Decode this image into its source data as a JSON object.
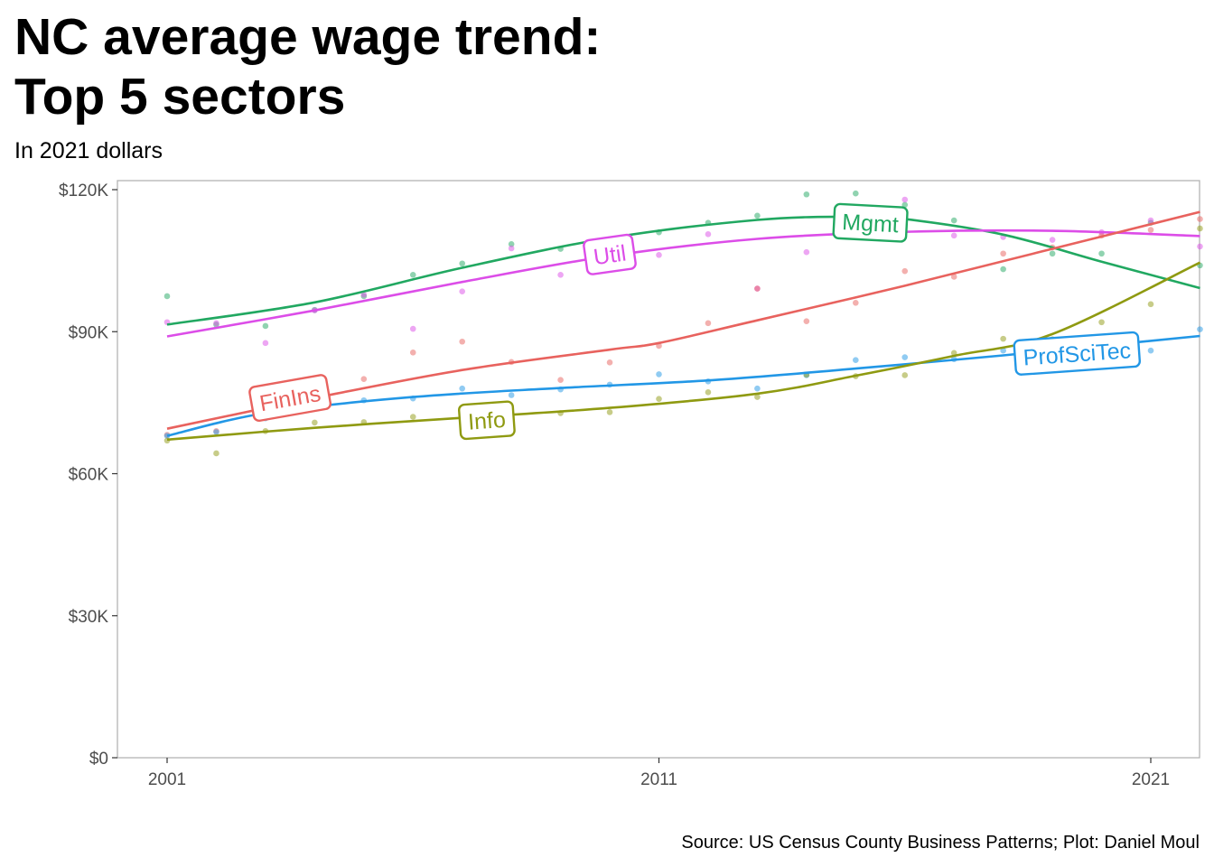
{
  "header": {
    "title_line1": "NC average wage trend:",
    "title_line2": "Top 5 sectors",
    "subtitle": "In 2021 dollars"
  },
  "caption": "Source: US Census County Business Patterns; Plot: Daniel Moul",
  "chart_data": {
    "type": "line",
    "xlabel": "",
    "ylabel": "",
    "xlim": [
      2000,
      2022
    ],
    "ylim": [
      0,
      120000
    ],
    "x_ticks": [
      2001,
      2011,
      2021
    ],
    "x_tick_labels": [
      "2001",
      "2011",
      "2021"
    ],
    "y_ticks": [
      0,
      30000,
      60000,
      90000,
      120000
    ],
    "y_tick_labels": [
      "$0",
      "$30K",
      "$60K",
      "$90K",
      "$120K"
    ],
    "grid": false,
    "legend": "none",
    "series": [
      {
        "name": "Mgmt",
        "color": "#21A861",
        "label_x": 2015.3,
        "label_y": 113000,
        "label_angle": 3,
        "points": [
          [
            2001,
            97500
          ],
          [
            2002,
            91500
          ],
          [
            2003,
            91200
          ],
          [
            2004,
            94600
          ],
          [
            2005,
            97500
          ],
          [
            2006,
            102000
          ],
          [
            2007,
            104400
          ],
          [
            2008,
            108500
          ],
          [
            2009,
            107500
          ],
          [
            2010,
            109300
          ],
          [
            2011,
            111000
          ],
          [
            2012,
            113000
          ],
          [
            2013,
            114500
          ],
          [
            2014,
            119000
          ],
          [
            2015,
            119200
          ],
          [
            2016,
            116800
          ],
          [
            2017,
            113500
          ],
          [
            2018,
            103200
          ],
          [
            2019,
            106500
          ],
          [
            2020,
            106500
          ],
          [
            2021,
            113000
          ],
          [
            2022,
            104000
          ]
        ],
        "smooth": [
          [
            2001,
            91500
          ],
          [
            2004,
            96200
          ],
          [
            2007,
            103500
          ],
          [
            2010,
            109800
          ],
          [
            2013,
            113600
          ],
          [
            2015,
            114300
          ],
          [
            2016,
            113800
          ],
          [
            2018,
            110500
          ],
          [
            2020,
            104800
          ],
          [
            2022,
            99200
          ]
        ]
      },
      {
        "name": "Util",
        "color": "#DC4DE8",
        "label_x": 2010,
        "label_y": 106300,
        "label_angle": -8,
        "points": [
          [
            2001,
            92000
          ],
          [
            2002,
            91800
          ],
          [
            2003,
            87600
          ],
          [
            2004,
            94500
          ],
          [
            2005,
            97800
          ],
          [
            2006,
            90600
          ],
          [
            2007,
            98500
          ],
          [
            2008,
            107600
          ],
          [
            2009,
            102000
          ],
          [
            2010,
            109400
          ],
          [
            2011,
            106200
          ],
          [
            2012,
            110600
          ],
          [
            2013,
            99100
          ],
          [
            2014,
            106800
          ],
          [
            2015,
            110500
          ],
          [
            2016,
            117900
          ],
          [
            2017,
            110300
          ],
          [
            2018,
            110000
          ],
          [
            2019,
            109400
          ],
          [
            2020,
            111000
          ],
          [
            2021,
            113500
          ],
          [
            2022,
            108000
          ]
        ],
        "smooth": [
          [
            2001,
            89000
          ],
          [
            2004,
            94500
          ],
          [
            2007,
            100500
          ],
          [
            2010,
            106000
          ],
          [
            2013,
            109600
          ],
          [
            2016,
            111100
          ],
          [
            2019,
            111300
          ],
          [
            2022,
            110200
          ]
        ]
      },
      {
        "name": "FinIns",
        "color": "#E8625E",
        "label_x": 2003.5,
        "label_y": 76000,
        "label_angle": -10,
        "points": [
          [
            2001,
            68200
          ],
          [
            2002,
            69000
          ],
          [
            2003,
            74000
          ],
          [
            2004,
            76000
          ],
          [
            2005,
            80000
          ],
          [
            2006,
            85600
          ],
          [
            2007,
            87900
          ],
          [
            2008,
            83600
          ],
          [
            2009,
            79800
          ],
          [
            2010,
            83500
          ],
          [
            2011,
            87000
          ],
          [
            2012,
            91800
          ],
          [
            2013,
            99100
          ],
          [
            2014,
            92200
          ],
          [
            2015,
            96100
          ],
          [
            2016,
            102800
          ],
          [
            2017,
            101600
          ],
          [
            2018,
            106500
          ],
          [
            2019,
            107800
          ],
          [
            2020,
            110300
          ],
          [
            2021,
            111500
          ],
          [
            2022,
            113800
          ]
        ],
        "smooth": [
          [
            2001,
            69500
          ],
          [
            2004,
            76000
          ],
          [
            2007,
            81900
          ],
          [
            2010,
            86200
          ],
          [
            2011,
            87600
          ],
          [
            2013,
            92400
          ],
          [
            2016,
            99700
          ],
          [
            2019,
            107500
          ],
          [
            2022,
            115300
          ]
        ]
      },
      {
        "name": "ProfSciTec",
        "color": "#2297E6",
        "label_x": 2019.5,
        "label_y": 85400,
        "label_angle": -4,
        "points": [
          [
            2001,
            68000
          ],
          [
            2002,
            68800
          ],
          [
            2003,
            71700
          ],
          [
            2004,
            75000
          ],
          [
            2005,
            75500
          ],
          [
            2006,
            75900
          ],
          [
            2007,
            78000
          ],
          [
            2008,
            76600
          ],
          [
            2009,
            77800
          ],
          [
            2010,
            78800
          ],
          [
            2011,
            81000
          ],
          [
            2012,
            79500
          ],
          [
            2013,
            78000
          ],
          [
            2014,
            80800
          ],
          [
            2015,
            84000
          ],
          [
            2016,
            84600
          ],
          [
            2017,
            84200
          ],
          [
            2018,
            86000
          ],
          [
            2019,
            87000
          ],
          [
            2020,
            88200
          ],
          [
            2021,
            86000
          ],
          [
            2022,
            90500
          ]
        ],
        "smooth": [
          [
            2001,
            68000
          ],
          [
            2003,
            72800
          ],
          [
            2006,
            76200
          ],
          [
            2009,
            78100
          ],
          [
            2012,
            79700
          ],
          [
            2015,
            82200
          ],
          [
            2018,
            85000
          ],
          [
            2022,
            89100
          ]
        ]
      },
      {
        "name": "Info",
        "color": "#8F9A11",
        "label_x": 2007.5,
        "label_y": 71300,
        "label_angle": -4,
        "points": [
          [
            2001,
            67000
          ],
          [
            2002,
            64300
          ],
          [
            2003,
            69000
          ],
          [
            2004,
            70800
          ],
          [
            2005,
            70900
          ],
          [
            2006,
            72000
          ],
          [
            2007,
            71000
          ],
          [
            2008,
            71600
          ],
          [
            2009,
            72800
          ],
          [
            2010,
            73000
          ],
          [
            2011,
            75800
          ],
          [
            2012,
            77200
          ],
          [
            2013,
            76200
          ],
          [
            2014,
            80900
          ],
          [
            2015,
            80600
          ],
          [
            2016,
            80800
          ],
          [
            2017,
            85500
          ],
          [
            2018,
            88500
          ],
          [
            2019,
            88400
          ],
          [
            2020,
            92000
          ],
          [
            2021,
            95800
          ],
          [
            2022,
            111800
          ]
        ],
        "smooth": [
          [
            2001,
            67200
          ],
          [
            2004,
            69700
          ],
          [
            2007,
            71800
          ],
          [
            2010,
            73900
          ],
          [
            2013,
            76900
          ],
          [
            2015,
            80700
          ],
          [
            2017,
            84900
          ],
          [
            2019,
            89500
          ],
          [
            2022,
            104600
          ]
        ]
      }
    ]
  }
}
